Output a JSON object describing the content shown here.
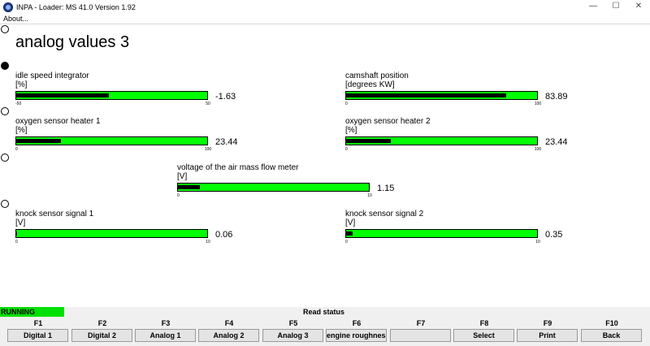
{
  "window": {
    "title": "INPA - Loader:  MS 41.0 Version 1.92",
    "minimize_glyph": "—",
    "maximize_glyph": "☐",
    "close_glyph": "✕"
  },
  "menu": {
    "about": "About..."
  },
  "screen": {
    "title": "analog values 3"
  },
  "radio_selection": [
    false,
    true,
    false,
    false,
    false
  ],
  "gauges": [
    {
      "label": "idle speed integrator",
      "unit": "[%]",
      "min": -50,
      "max": 50,
      "value": -1.63,
      "min_label": "-50",
      "max_label": "50",
      "value_text": "-1.63"
    },
    {
      "label": "camshaft position",
      "unit": "[degrees KW]",
      "min": 0,
      "max": 100,
      "value": 83.89,
      "min_label": "0",
      "max_label": "100",
      "value_text": "83.89"
    },
    {
      "label": "oxygen sensor heater 1",
      "unit": "[%]",
      "min": 0,
      "max": 100,
      "value": 23.44,
      "min_label": "0",
      "max_label": "100",
      "value_text": "23.44"
    },
    {
      "label": "oxygen sensor heater 2",
      "unit": "[%]",
      "min": 0,
      "max": 100,
      "value": 23.44,
      "min_label": "0",
      "max_label": "100",
      "value_text": "23.44"
    },
    {
      "label": "voltage of the air mass flow meter",
      "unit": "[V]",
      "min": 0,
      "max": 10,
      "value": 1.15,
      "min_label": "0",
      "max_label": "10",
      "value_text": "1.15"
    },
    {
      "label": "knock sensor signal 1",
      "unit": "[V]",
      "min": 0,
      "max": 10,
      "value": 0.06,
      "min_label": "0",
      "max_label": "10",
      "value_text": "0.06"
    },
    {
      "label": "knock sensor signal 2",
      "unit": "[V]",
      "min": 0,
      "max": 10,
      "value": 0.35,
      "min_label": "0",
      "max_label": "10",
      "value_text": "0.35"
    }
  ],
  "status": {
    "running": "RUNNING",
    "read_status": "Read status"
  },
  "fkeys": [
    {
      "key": "F1",
      "label": "Digital 1"
    },
    {
      "key": "F2",
      "label": "Digital 2"
    },
    {
      "key": "F3",
      "label": "Analog 1"
    },
    {
      "key": "F4",
      "label": "Analog 2"
    },
    {
      "key": "F5",
      "label": "Analog 3"
    },
    {
      "key": "F6",
      "label": "engine roughness"
    },
    {
      "key": "F7",
      "label": ""
    },
    {
      "key": "F8",
      "label": "Select"
    },
    {
      "key": "F9",
      "label": "Print"
    },
    {
      "key": "F10",
      "label": "Back"
    }
  ],
  "colors": {
    "bar_green": "#00ff00",
    "bar_fill": "#000000",
    "running_green": "#00e000"
  }
}
